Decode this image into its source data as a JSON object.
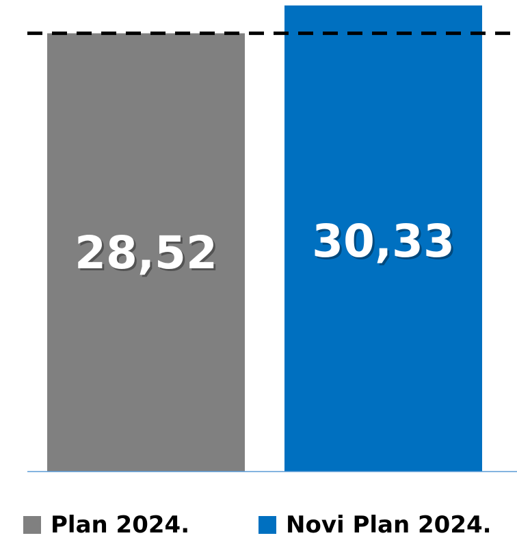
{
  "chart_data": {
    "type": "bar",
    "categories": [
      "Plan 2024.",
      "Novi Plan 2024."
    ],
    "values": [
      28.52,
      30.33
    ],
    "value_labels": [
      "28,52",
      "30,33"
    ],
    "colors": [
      "#808080",
      "#0070C0"
    ],
    "reference_line": {
      "value": 28.52,
      "style": "dashed",
      "color": "#000000"
    },
    "ylim": [
      0,
      30.33
    ],
    "grid": false,
    "legend": {
      "position": "bottom",
      "entries": [
        "Plan 2024.",
        "Novi Plan 2024."
      ]
    },
    "axis_color": "#5B9BD5",
    "title": "",
    "xlabel": "",
    "ylabel": ""
  }
}
